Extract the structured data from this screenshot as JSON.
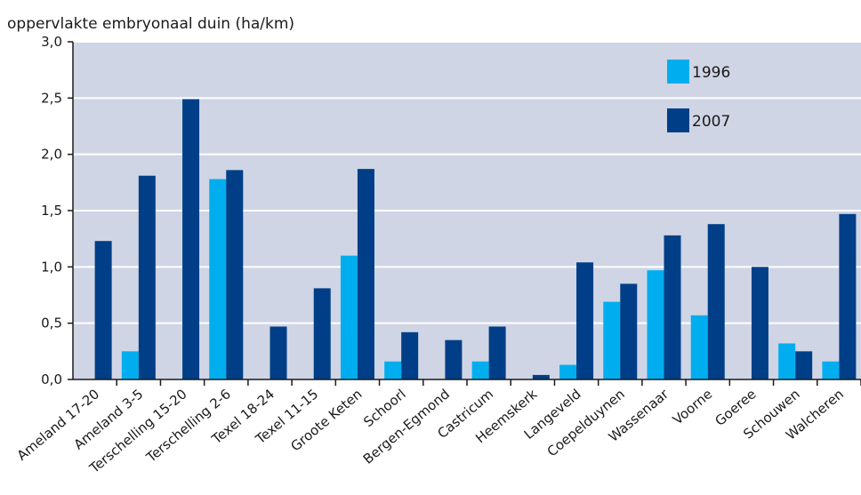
{
  "chart_data": {
    "type": "bar",
    "title": "",
    "ylabel": "oppervlakte embryonaal duin (ha/km)",
    "xlabel": "",
    "ylim": [
      0,
      3.0
    ],
    "yticks": [
      "0,0",
      "0,5",
      "1,0",
      "1,5",
      "2,0",
      "2,5",
      "3,0"
    ],
    "grid": true,
    "legend_position": "top-right",
    "categories": [
      "Ameland 17-20",
      "Ameland 3-5",
      "Terschelling 15-20",
      "Terschelling 2-6",
      "Texel 18-24",
      "Texel 11-15",
      "Groote Keten",
      "Schoorl",
      "Bergen-Egmond",
      "Castricum",
      "Heemskerk",
      "Langeveld",
      "Coepelduynen",
      "Wassenaar",
      "Voorne",
      "Goeree",
      "Schouwen",
      "Walcheren"
    ],
    "series": [
      {
        "name": "1996",
        "color": "#00aeef",
        "values": [
          0,
          0.25,
          0,
          1.78,
          0,
          0,
          1.1,
          0.16,
          0,
          0.16,
          0,
          0.13,
          0.69,
          0.97,
          0.57,
          0,
          0.32,
          0.16
        ]
      },
      {
        "name": "2007",
        "color": "#003f87",
        "values": [
          1.23,
          1.81,
          2.49,
          1.86,
          0.47,
          0.81,
          1.87,
          0.42,
          0.35,
          0.47,
          0.04,
          1.04,
          0.85,
          1.28,
          1.38,
          1.0,
          0.25,
          1.47
        ]
      }
    ]
  },
  "colors": {
    "plot_background": "#cfd5e5",
    "gridline": "#ffffff",
    "axis": "#1a1a1a"
  }
}
